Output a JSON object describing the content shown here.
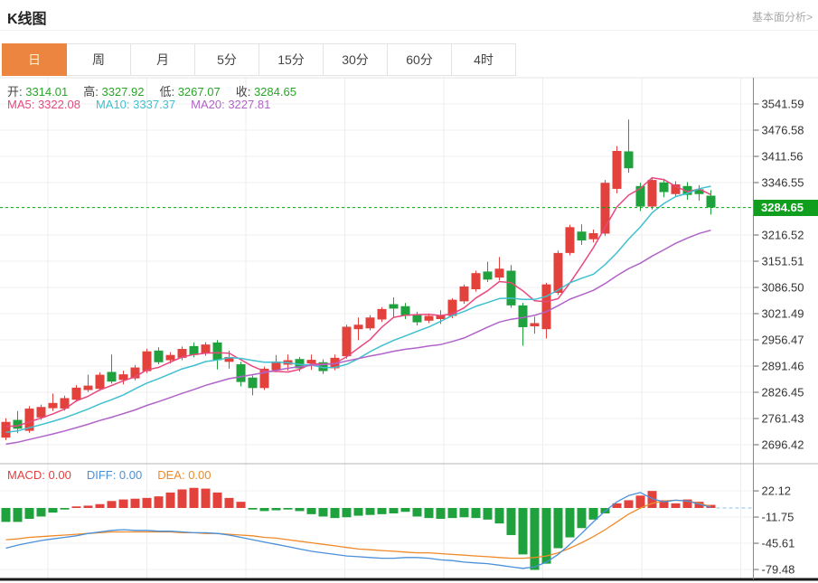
{
  "header": {
    "title": "K线图",
    "link": "基本面分析>"
  },
  "tabs": {
    "items": [
      "日",
      "周",
      "月",
      "5分",
      "15分",
      "30分",
      "60分",
      "4时"
    ],
    "selected_index": 0
  },
  "ohlc_legend": {
    "items": [
      {
        "label": "开:",
        "value": "3314.01"
      },
      {
        "label": "高:",
        "value": "3327.92"
      },
      {
        "label": "低:",
        "value": "3267.07"
      },
      {
        "label": "收:",
        "value": "3284.65"
      }
    ]
  },
  "ma_legend": {
    "items": [
      {
        "label": "MA5:",
        "value": "3322.08",
        "color": "#e8487f"
      },
      {
        "label": "MA10:",
        "value": "3337.37",
        "color": "#3fc0d0"
      },
      {
        "label": "MA20:",
        "value": "3227.81",
        "color": "#b064c8"
      }
    ]
  },
  "macd_legend": {
    "items": [
      {
        "label": "MACD:",
        "value": "0.00",
        "color": "#e24040"
      },
      {
        "label": "DIFF:",
        "value": "0.00",
        "color": "#4a90d9"
      },
      {
        "label": "DEA:",
        "value": "0.00",
        "color": "#ef8a2a"
      }
    ]
  },
  "price_tag": "3284.65",
  "colors": {
    "up_red": "#e2413c",
    "down_green": "#1fa23d",
    "value_green": "#2aa52a",
    "tag_green": "#0f9e1e",
    "dash_green": "#0f9e1e",
    "ma5": "#e8487f",
    "ma10": "#3fc0d0",
    "ma20": "#b064c8",
    "diff_blue": "#4a90d9",
    "dea_orange": "#ef8a2a",
    "dash_blue": "#8fc1e8",
    "tab_orange": "#ec8540",
    "axis_text": "#333333",
    "grid": "#efefef",
    "axis_line": "#8a8a8a"
  },
  "chart_data": {
    "type": "candlestick",
    "title": "K线图",
    "main": {
      "y_ticks": [
        3541.59,
        3476.58,
        3411.56,
        3346.55,
        3216.52,
        3151.51,
        3086.5,
        3021.49,
        2956.47,
        2891.46,
        2826.45,
        2761.43,
        2696.42
      ],
      "tick_step": 65.01,
      "last_price": 3284.65,
      "ma_windows": [
        5,
        10,
        20
      ],
      "ma_seed": [
        2642,
        2648,
        2654,
        2660,
        2665,
        2671,
        2677,
        2683,
        2689,
        2695,
        2701,
        2707,
        2712,
        2718,
        2724,
        2730,
        2736,
        2742,
        2748
      ],
      "candles": [
        [
          2714,
          2762,
          2708,
          2753
        ],
        [
          2758,
          2780,
          2725,
          2736
        ],
        [
          2731,
          2792,
          2726,
          2786
        ],
        [
          2764,
          2796,
          2758,
          2790
        ],
        [
          2787,
          2823,
          2780,
          2800
        ],
        [
          2786,
          2818,
          2781,
          2812
        ],
        [
          2808,
          2844,
          2803,
          2838
        ],
        [
          2832,
          2870,
          2827,
          2843
        ],
        [
          2835,
          2876,
          2830,
          2870
        ],
        [
          2877,
          2920,
          2848,
          2853
        ],
        [
          2857,
          2880,
          2846,
          2871
        ],
        [
          2861,
          2894,
          2856,
          2888
        ],
        [
          2879,
          2934,
          2874,
          2928
        ],
        [
          2930,
          2938,
          2896,
          2901
        ],
        [
          2906,
          2926,
          2898,
          2919
        ],
        [
          2912,
          2940,
          2906,
          2934
        ],
        [
          2941,
          2950,
          2913,
          2919
        ],
        [
          2923,
          2951,
          2917,
          2945
        ],
        [
          2950,
          2956,
          2883,
          2906
        ],
        [
          2902,
          2930,
          2885,
          2914
        ],
        [
          2896,
          2902,
          2841,
          2852
        ],
        [
          2863,
          2868,
          2819,
          2837
        ],
        [
          2837,
          2890,
          2832,
          2885
        ],
        [
          2881,
          2919,
          2876,
          2903
        ],
        [
          2895,
          2920,
          2880,
          2906
        ],
        [
          2909,
          2914,
          2878,
          2886
        ],
        [
          2898,
          2920,
          2882,
          2907
        ],
        [
          2901,
          2908,
          2872,
          2879
        ],
        [
          2886,
          2920,
          2881,
          2912
        ],
        [
          2916,
          2994,
          2910,
          2989
        ],
        [
          2983,
          3012,
          2956,
          2994
        ],
        [
          2985,
          3018,
          2980,
          3012
        ],
        [
          3007,
          3038,
          3001,
          3033
        ],
        [
          3045,
          3062,
          3012,
          3034
        ],
        [
          3040,
          3048,
          3008,
          3016
        ],
        [
          3018,
          3026,
          2992,
          3000
        ],
        [
          3004,
          3022,
          2998,
          3016
        ],
        [
          3008,
          3030,
          2996,
          3018
        ],
        [
          3016,
          3060,
          3010,
          3056
        ],
        [
          3052,
          3094,
          3046,
          3089
        ],
        [
          3082,
          3128,
          3076,
          3122
        ],
        [
          3126,
          3150,
          3100,
          3106
        ],
        [
          3111,
          3162,
          3104,
          3133
        ],
        [
          3128,
          3142,
          3036,
          3042
        ],
        [
          3042,
          3048,
          2942,
          2988
        ],
        [
          2990,
          3014,
          2972,
          2998
        ],
        [
          2983,
          3098,
          2960,
          3094
        ],
        [
          3073,
          3178,
          3068,
          3172
        ],
        [
          3172,
          3242,
          3166,
          3236
        ],
        [
          3225,
          3243,
          3192,
          3203
        ],
        [
          3206,
          3230,
          3198,
          3221
        ],
        [
          3220,
          3353,
          3214,
          3346
        ],
        [
          3331,
          3437,
          3320,
          3425
        ],
        [
          3424,
          3503,
          3371,
          3382
        ],
        [
          3338,
          3346,
          3276,
          3287
        ],
        [
          3287,
          3360,
          3280,
          3353
        ],
        [
          3347,
          3356,
          3310,
          3323
        ],
        [
          3318,
          3350,
          3312,
          3342
        ],
        [
          3338,
          3348,
          3304,
          3316
        ],
        [
          3330,
          3340,
          3302,
          3318
        ],
        [
          3314.01,
          3327.92,
          3267.07,
          3284.65
        ]
      ]
    },
    "macd": {
      "y_ticks": [
        22.12,
        -11.75,
        -45.61,
        -79.48
      ],
      "hist": [
        -18,
        -18,
        -14,
        -11,
        -6,
        -2,
        2,
        3,
        5,
        9,
        11,
        12,
        13,
        15,
        20,
        24,
        26,
        25,
        20,
        13,
        8,
        -2,
        -4,
        -3,
        -2,
        -4,
        -8,
        -11,
        -13,
        -12,
        -10,
        -9,
        -8,
        -7,
        -5,
        -11,
        -13,
        -14,
        -13,
        -12,
        -13,
        -15,
        -20,
        -35,
        -60,
        -80,
        -72,
        -52,
        -38,
        -26,
        -15,
        -7,
        6,
        10,
        16,
        22,
        10,
        6,
        11,
        8,
        4
      ],
      "diff": [
        -52,
        -48,
        -45,
        -42,
        -40,
        -38,
        -36,
        -33,
        -31,
        -29,
        -28,
        -29,
        -29,
        -30,
        -30,
        -31,
        -32,
        -32,
        -33,
        -35,
        -38,
        -41,
        -44,
        -47,
        -50,
        -53,
        -56,
        -58,
        -60,
        -62,
        -63,
        -64,
        -65,
        -65,
        -64,
        -64,
        -65,
        -67,
        -68,
        -70,
        -71,
        -72,
        -74,
        -76,
        -78,
        -76,
        -70,
        -60,
        -47,
        -33,
        -18,
        -4,
        8,
        16,
        20,
        12,
        8,
        10,
        9,
        5,
        1
      ],
      "dea": [
        -41,
        -40,
        -38,
        -37,
        -36,
        -35,
        -34,
        -33,
        -32,
        -31,
        -31,
        -31,
        -31,
        -31,
        -31,
        -32,
        -32,
        -33,
        -33,
        -34,
        -35,
        -36,
        -38,
        -39,
        -41,
        -43,
        -45,
        -47,
        -49,
        -51,
        -53,
        -54,
        -55,
        -56,
        -57,
        -58,
        -58,
        -59,
        -60,
        -61,
        -62,
        -63,
        -64,
        -65,
        -65,
        -64,
        -62,
        -58,
        -52,
        -45,
        -37,
        -28,
        -18,
        -8,
        0,
        6,
        9,
        10,
        9,
        6,
        2
      ]
    }
  }
}
